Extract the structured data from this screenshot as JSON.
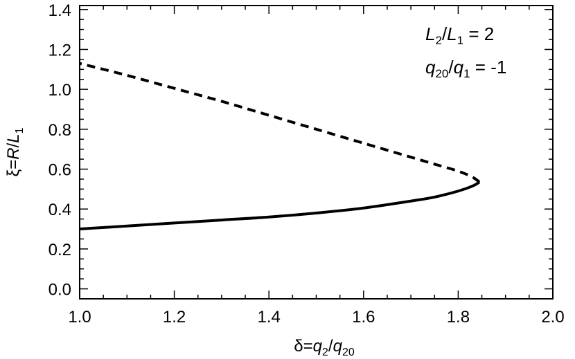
{
  "chart_data": {
    "type": "line",
    "xlabel": {
      "main": "δ=",
      "var": "q",
      "sub1": "2",
      "slash": "/",
      "var2": "q",
      "sub2": "20"
    },
    "ylabel": {
      "main": "ξ=",
      "var": "R",
      "slash": "/",
      "var2": "L",
      "sub": "1"
    },
    "xlim": [
      1.0,
      2.0
    ],
    "ylim": [
      -0.05,
      1.42
    ],
    "x_ticks": [
      "1.0",
      "1.2",
      "1.4",
      "1.6",
      "1.8",
      "2.0"
    ],
    "y_ticks": [
      "0.0",
      "0.2",
      "0.4",
      "0.6",
      "0.8",
      "1.0",
      "1.2",
      "1.4"
    ],
    "annotations": [
      {
        "var1": "L",
        "sub1": "2",
        "slash": "/",
        "var2": "L",
        "sub2": "1",
        "eq": " = 2"
      },
      {
        "var1": "q",
        "sub1": "20",
        "slash": "/",
        "var2": "q",
        "sub2": "1",
        "eq": " = -1"
      }
    ],
    "series": [
      {
        "style": "solid",
        "x": [
          1.0,
          1.1,
          1.2,
          1.3,
          1.4,
          1.5,
          1.6,
          1.7,
          1.75,
          1.8,
          1.83,
          1.845
        ],
        "y": [
          0.3,
          0.315,
          0.33,
          0.345,
          0.36,
          0.38,
          0.405,
          0.44,
          0.46,
          0.49,
          0.515,
          0.535
        ]
      },
      {
        "style": "dashed",
        "x": [
          1.845,
          1.83,
          1.8,
          1.75,
          1.7,
          1.6,
          1.5,
          1.4,
          1.3,
          1.2,
          1.1,
          1.0
        ],
        "y": [
          0.535,
          0.56,
          0.59,
          0.625,
          0.66,
          0.73,
          0.8,
          0.87,
          0.94,
          1.005,
          1.07,
          1.13
        ]
      }
    ],
    "grid": false,
    "line_color": "#000000"
  }
}
